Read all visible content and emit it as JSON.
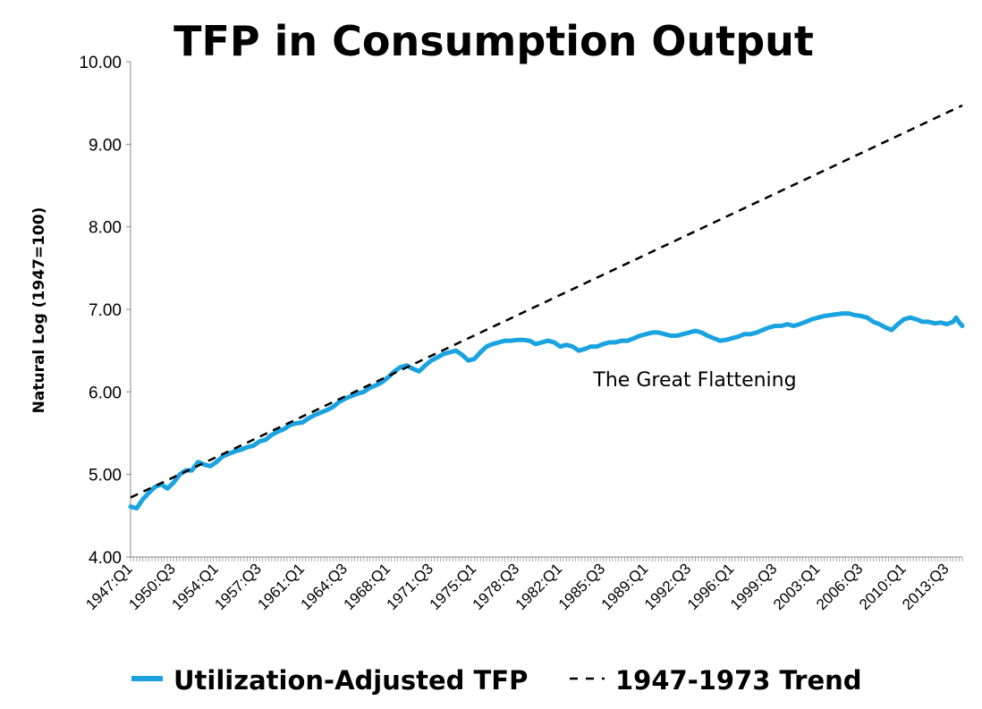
{
  "chart_data": {
    "type": "line",
    "title": "TFP in Consumption Output",
    "xlabel": "",
    "ylabel": "Natural Log (1947=100)",
    "ylim": [
      4.0,
      10.0
    ],
    "yticks": [
      "4.00",
      "5.00",
      "6.00",
      "7.00",
      "8.00",
      "9.00",
      "10.00"
    ],
    "x_start_year": 1947,
    "x_end_year": 2014.75,
    "x_tick_labels": [
      "1947:Q1",
      "1950:Q3",
      "1954:Q1",
      "1957:Q3",
      "1961:Q1",
      "1964:Q3",
      "1968:Q1",
      "1971:Q3",
      "1975:Q1",
      "1978:Q3",
      "1982:Q1",
      "1985:Q3",
      "1989:Q1",
      "1992:Q3",
      "1996:Q1",
      "1999:Q3",
      "2003:Q1",
      "2006:Q3",
      "2010:Q1",
      "2013:Q3"
    ],
    "annotation": "The Great Flattening",
    "series": [
      {
        "name": "Utilization-Adjusted TFP",
        "style": "solid",
        "color": "#1aa3e0",
        "points": [
          [
            1947.0,
            4.61
          ],
          [
            1947.5,
            4.59
          ],
          [
            1948.0,
            4.7
          ],
          [
            1948.5,
            4.78
          ],
          [
            1949.0,
            4.85
          ],
          [
            1949.5,
            4.88
          ],
          [
            1950.0,
            4.83
          ],
          [
            1950.5,
            4.9
          ],
          [
            1951.0,
            5.0
          ],
          [
            1951.5,
            5.05
          ],
          [
            1952.0,
            5.05
          ],
          [
            1952.5,
            5.15
          ],
          [
            1953.0,
            5.12
          ],
          [
            1953.5,
            5.1
          ],
          [
            1954.0,
            5.15
          ],
          [
            1954.5,
            5.22
          ],
          [
            1955.0,
            5.25
          ],
          [
            1955.5,
            5.28
          ],
          [
            1956.0,
            5.3
          ],
          [
            1956.5,
            5.33
          ],
          [
            1957.0,
            5.35
          ],
          [
            1957.5,
            5.4
          ],
          [
            1958.0,
            5.42
          ],
          [
            1958.5,
            5.48
          ],
          [
            1959.0,
            5.52
          ],
          [
            1959.5,
            5.55
          ],
          [
            1960.0,
            5.6
          ],
          [
            1960.5,
            5.62
          ],
          [
            1961.0,
            5.63
          ],
          [
            1961.5,
            5.68
          ],
          [
            1962.0,
            5.72
          ],
          [
            1962.5,
            5.75
          ],
          [
            1963.0,
            5.78
          ],
          [
            1963.5,
            5.82
          ],
          [
            1964.0,
            5.88
          ],
          [
            1964.5,
            5.92
          ],
          [
            1965.0,
            5.95
          ],
          [
            1965.5,
            5.98
          ],
          [
            1966.0,
            6.0
          ],
          [
            1966.5,
            6.05
          ],
          [
            1967.0,
            6.08
          ],
          [
            1967.5,
            6.12
          ],
          [
            1968.0,
            6.18
          ],
          [
            1968.5,
            6.25
          ],
          [
            1969.0,
            6.3
          ],
          [
            1969.5,
            6.32
          ],
          [
            1970.0,
            6.28
          ],
          [
            1970.5,
            6.25
          ],
          [
            1971.0,
            6.32
          ],
          [
            1971.5,
            6.38
          ],
          [
            1972.0,
            6.42
          ],
          [
            1972.5,
            6.46
          ],
          [
            1973.0,
            6.48
          ],
          [
            1973.5,
            6.5
          ],
          [
            1974.0,
            6.45
          ],
          [
            1974.5,
            6.38
          ],
          [
            1975.0,
            6.4
          ],
          [
            1975.5,
            6.48
          ],
          [
            1976.0,
            6.55
          ],
          [
            1976.5,
            6.58
          ],
          [
            1977.0,
            6.6
          ],
          [
            1977.5,
            6.62
          ],
          [
            1978.0,
            6.62
          ],
          [
            1978.5,
            6.63
          ],
          [
            1979.0,
            6.63
          ],
          [
            1979.5,
            6.62
          ],
          [
            1980.0,
            6.58
          ],
          [
            1980.5,
            6.6
          ],
          [
            1981.0,
            6.62
          ],
          [
            1981.5,
            6.6
          ],
          [
            1982.0,
            6.55
          ],
          [
            1982.5,
            6.57
          ],
          [
            1983.0,
            6.55
          ],
          [
            1983.5,
            6.5
          ],
          [
            1984.0,
            6.52
          ],
          [
            1984.5,
            6.55
          ],
          [
            1985.0,
            6.55
          ],
          [
            1985.5,
            6.58
          ],
          [
            1986.0,
            6.6
          ],
          [
            1986.5,
            6.6
          ],
          [
            1987.0,
            6.62
          ],
          [
            1987.5,
            6.62
          ],
          [
            1988.0,
            6.65
          ],
          [
            1988.5,
            6.68
          ],
          [
            1989.0,
            6.7
          ],
          [
            1989.5,
            6.72
          ],
          [
            1990.0,
            6.72
          ],
          [
            1990.5,
            6.7
          ],
          [
            1991.0,
            6.68
          ],
          [
            1991.5,
            6.68
          ],
          [
            1992.0,
            6.7
          ],
          [
            1992.5,
            6.72
          ],
          [
            1993.0,
            6.74
          ],
          [
            1993.5,
            6.72
          ],
          [
            1994.0,
            6.68
          ],
          [
            1994.5,
            6.65
          ],
          [
            1995.0,
            6.62
          ],
          [
            1995.5,
            6.63
          ],
          [
            1996.0,
            6.65
          ],
          [
            1996.5,
            6.67
          ],
          [
            1997.0,
            6.7
          ],
          [
            1997.5,
            6.7
          ],
          [
            1998.0,
            6.72
          ],
          [
            1998.5,
            6.75
          ],
          [
            1999.0,
            6.78
          ],
          [
            1999.5,
            6.8
          ],
          [
            2000.0,
            6.8
          ],
          [
            2000.5,
            6.82
          ],
          [
            2001.0,
            6.8
          ],
          [
            2001.5,
            6.82
          ],
          [
            2002.0,
            6.85
          ],
          [
            2002.5,
            6.88
          ],
          [
            2003.0,
            6.9
          ],
          [
            2003.5,
            6.92
          ],
          [
            2004.0,
            6.93
          ],
          [
            2004.5,
            6.94
          ],
          [
            2005.0,
            6.95
          ],
          [
            2005.5,
            6.95
          ],
          [
            2006.0,
            6.93
          ],
          [
            2006.5,
            6.92
          ],
          [
            2007.0,
            6.9
          ],
          [
            2007.5,
            6.85
          ],
          [
            2008.0,
            6.82
          ],
          [
            2008.5,
            6.78
          ],
          [
            2009.0,
            6.75
          ],
          [
            2009.5,
            6.82
          ],
          [
            2010.0,
            6.88
          ],
          [
            2010.5,
            6.9
          ],
          [
            2011.0,
            6.88
          ],
          [
            2011.5,
            6.85
          ],
          [
            2012.0,
            6.85
          ],
          [
            2012.5,
            6.83
          ],
          [
            2013.0,
            6.84
          ],
          [
            2013.5,
            6.82
          ],
          [
            2014.0,
            6.85
          ],
          [
            2014.25,
            6.9
          ],
          [
            2014.5,
            6.84
          ],
          [
            2014.75,
            6.8
          ]
        ]
      },
      {
        "name": "1947-1973 Trend",
        "style": "dashed",
        "color": "#000000",
        "points": [
          [
            1947.0,
            4.72
          ],
          [
            2014.75,
            9.47
          ]
        ]
      }
    ],
    "legend": "bottom"
  }
}
